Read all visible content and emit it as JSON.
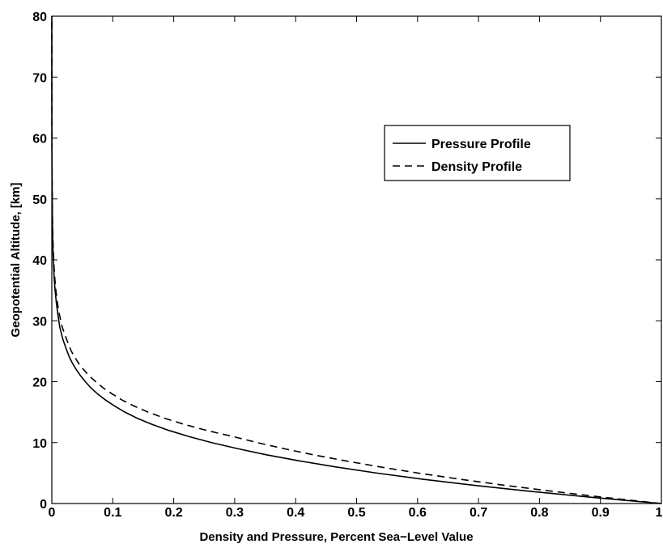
{
  "chart_data": {
    "type": "line",
    "title": "",
    "xlabel": "Density and Pressure, Percent Sea−Level Value",
    "ylabel": "Geopotential Altitude, [km]",
    "xlim": [
      0,
      1
    ],
    "ylim": [
      0,
      80
    ],
    "x_ticks": [
      "0",
      "0.1",
      "0.2",
      "0.3",
      "0.4",
      "0.5",
      "0.6",
      "0.7",
      "0.8",
      "0.9",
      "1"
    ],
    "y_ticks": [
      "0",
      "10",
      "20",
      "30",
      "40",
      "50",
      "60",
      "70",
      "80"
    ],
    "grid": false,
    "legend_position": "upper-right",
    "series": [
      {
        "name": "Pressure Profile",
        "line_style": "solid",
        "color": "#000000",
        "points": [
          [
            1.0,
            0
          ],
          [
            0.887,
            1
          ],
          [
            0.785,
            2
          ],
          [
            0.692,
            3
          ],
          [
            0.608,
            4
          ],
          [
            0.533,
            5
          ],
          [
            0.466,
            6
          ],
          [
            0.406,
            7
          ],
          [
            0.352,
            8
          ],
          [
            0.305,
            9
          ],
          [
            0.262,
            10
          ],
          [
            0.225,
            11
          ],
          [
            0.192,
            12
          ],
          [
            0.164,
            13
          ],
          [
            0.14,
            14
          ],
          [
            0.12,
            15
          ],
          [
            0.103,
            16
          ],
          [
            0.088,
            17
          ],
          [
            0.075,
            18
          ],
          [
            0.064,
            19
          ],
          [
            0.055,
            20
          ],
          [
            0.047,
            21
          ],
          [
            0.04,
            22
          ],
          [
            0.034,
            23
          ],
          [
            0.029,
            24
          ],
          [
            0.025,
            25
          ],
          [
            0.018,
            27
          ],
          [
            0.013,
            29
          ],
          [
            0.01,
            31
          ],
          [
            0.0074,
            33
          ],
          [
            0.0054,
            35
          ],
          [
            0.0039,
            37
          ],
          [
            0.0029,
            39
          ],
          [
            0.0021,
            41
          ],
          [
            0.0016,
            43
          ],
          [
            0.0012,
            45
          ],
          [
            0.00093,
            47
          ],
          [
            0.0007,
            50
          ],
          [
            0.00045,
            53
          ],
          [
            0.0003,
            56
          ],
          [
            0.00019,
            60
          ],
          [
            0.0001,
            65
          ],
          [
            5e-05,
            70
          ],
          [
            2e-05,
            75
          ],
          [
            1e-05,
            80
          ]
        ]
      },
      {
        "name": "Density Profile",
        "line_style": "dashed",
        "color": "#000000",
        "points": [
          [
            1.0,
            0
          ],
          [
            0.907,
            1
          ],
          [
            0.822,
            2
          ],
          [
            0.742,
            3
          ],
          [
            0.669,
            4
          ],
          [
            0.601,
            5
          ],
          [
            0.539,
            6
          ],
          [
            0.482,
            7
          ],
          [
            0.429,
            8
          ],
          [
            0.381,
            9
          ],
          [
            0.337,
            10
          ],
          [
            0.297,
            11
          ],
          [
            0.254,
            12
          ],
          [
            0.217,
            13
          ],
          [
            0.185,
            14
          ],
          [
            0.158,
            15
          ],
          [
            0.135,
            16
          ],
          [
            0.115,
            17
          ],
          [
            0.099,
            18
          ],
          [
            0.084,
            19
          ],
          [
            0.072,
            20
          ],
          [
            0.061,
            21
          ],
          [
            0.052,
            22
          ],
          [
            0.044,
            23
          ],
          [
            0.038,
            24
          ],
          [
            0.032,
            25
          ],
          [
            0.024,
            27
          ],
          [
            0.017,
            29
          ],
          [
            0.0125,
            31
          ],
          [
            0.0091,
            33
          ],
          [
            0.0067,
            35
          ],
          [
            0.0049,
            37
          ],
          [
            0.0036,
            39
          ],
          [
            0.0027,
            41
          ],
          [
            0.002,
            43
          ],
          [
            0.0015,
            45
          ],
          [
            0.0011,
            47
          ],
          [
            0.0008,
            50
          ],
          [
            0.0005,
            53
          ],
          [
            0.00035,
            56
          ],
          [
            0.0002,
            60
          ],
          [
            0.00011,
            65
          ],
          [
            6e-05,
            70
          ],
          [
            3e-05,
            75
          ],
          [
            1.5e-05,
            80
          ]
        ]
      }
    ]
  }
}
